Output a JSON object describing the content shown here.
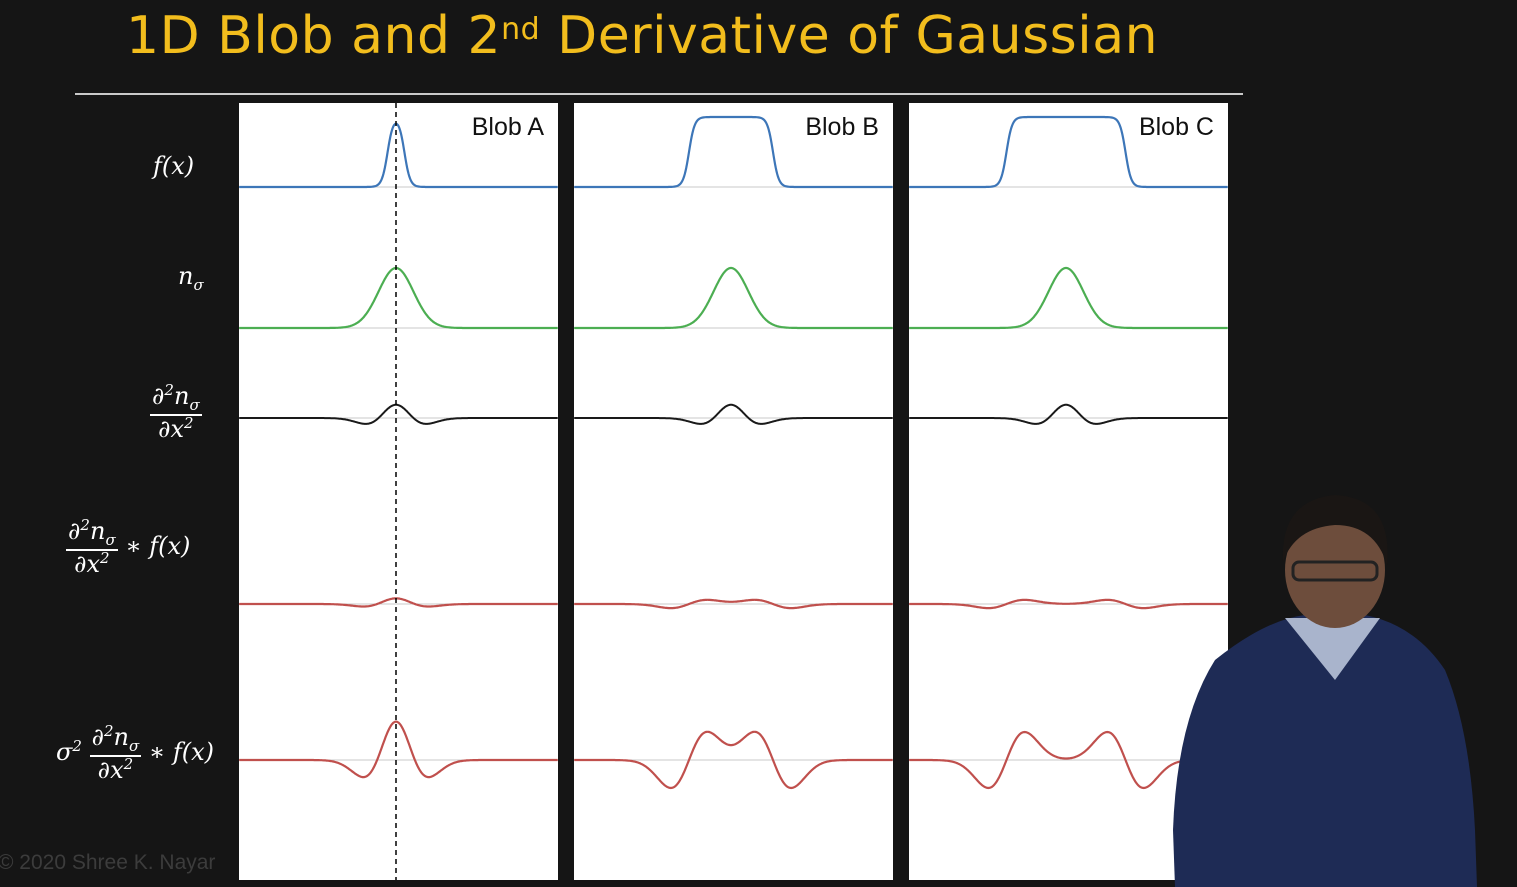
{
  "slide": {
    "title_prefix": "1D Blob and 2",
    "title_superscript": "nd",
    "title_suffix": " Derivative of Gaussian",
    "copyright": "© 2020 Shree K. Nayar"
  },
  "row_labels": {
    "f_x": "f(x)",
    "n_base": "n",
    "n_sub": "σ",
    "deriv_num_prefix": "∂",
    "deriv_num_exp": "2",
    "deriv_num_var": "n",
    "deriv_num_sub": "σ",
    "deriv_den": "∂x",
    "deriv_den_exp": "2",
    "conv_suffix": " ∗ f(x)",
    "sigma": "σ",
    "sigma_exp": "2"
  },
  "panels": [
    {
      "label": "Blob A",
      "blob_halfwidth": 0.12
    },
    {
      "label": "Blob B",
      "blob_halfwidth": 0.6
    },
    {
      "label": "Blob C",
      "blob_halfwidth": 0.85
    }
  ],
  "colors": {
    "title": "#f2bd1d",
    "background": "#151515",
    "f_x": "#3d76b8",
    "gaussian": "#4cae52",
    "second_derivative": "#1a1a1a",
    "response": "#c0504d",
    "axis": "#c8c8c8"
  },
  "diagram": {
    "gaussian_sigma": 0.25,
    "dashed_marker_panel": "Blob A",
    "rows": [
      "f(x)",
      "n_σ",
      "∂²n_σ/∂x²",
      "∂²n_σ/∂x² ∗ f(x)",
      "σ² ∂²n_σ/∂x² ∗ f(x)"
    ]
  }
}
